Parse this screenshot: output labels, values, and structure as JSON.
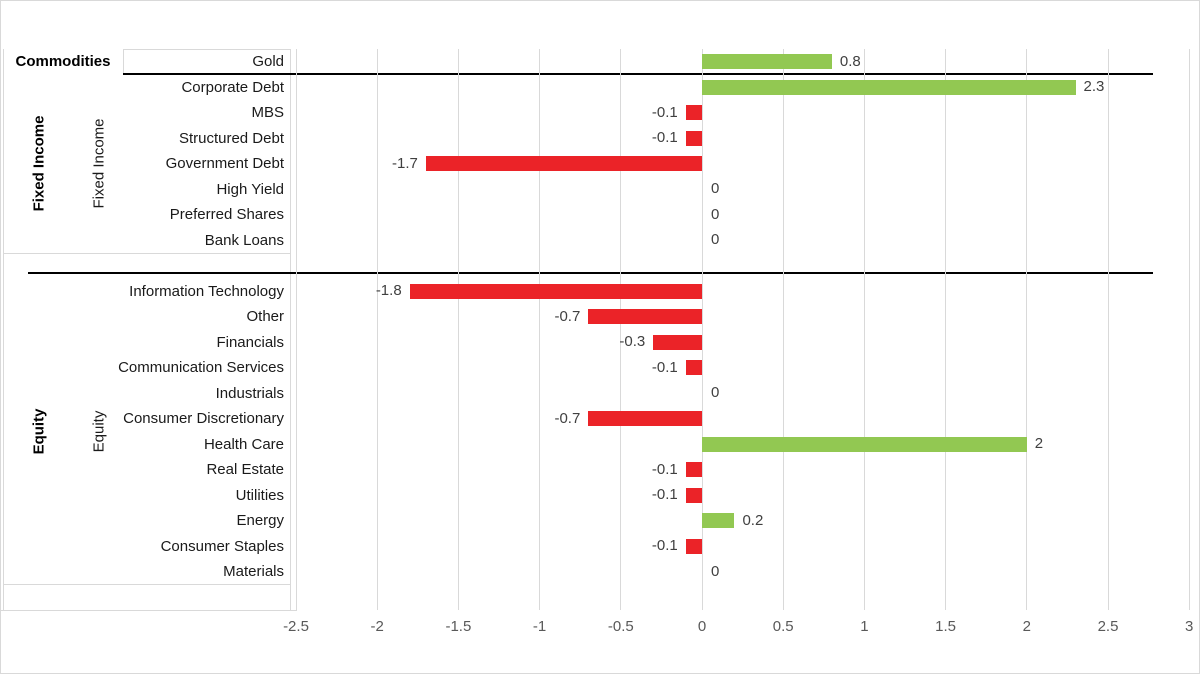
{
  "chart_data": {
    "type": "bar",
    "orientation": "horizontal",
    "title": "",
    "xlabel": "",
    "ylabel": "",
    "xlim": [
      -2.5,
      3
    ],
    "xticks": [
      "-2.5",
      "-2",
      "-1.5",
      "-1",
      "-0.5",
      "0",
      "0.5",
      "1",
      "1.5",
      "2",
      "2.5",
      "3"
    ],
    "grid": "vertical-on",
    "legend": "none",
    "colors": {
      "positive_bar": "#92C852",
      "negative_bar": "#EB2328",
      "gridline": "#D9D9D9",
      "group_separator": "#000000",
      "axis_text": "#595959",
      "category_text": "#1A1A1A",
      "value_text": "#404040",
      "border": "#D9D9D9"
    },
    "groups": [
      {
        "name": "Commodities",
        "items": [
          {
            "label": "Gold",
            "value": 0.8,
            "display": "0.8"
          }
        ]
      },
      {
        "name": "Fixed Income",
        "items": [
          {
            "label": "Corporate Debt",
            "value": 2.3,
            "display": "2.3"
          },
          {
            "label": "MBS",
            "value": -0.1,
            "display": "-0.1"
          },
          {
            "label": "Structured Debt",
            "value": -0.1,
            "display": "-0.1"
          },
          {
            "label": "Government Debt",
            "value": -1.7,
            "display": "-1.7"
          },
          {
            "label": "High Yield",
            "value": 0,
            "display": "0"
          },
          {
            "label": "Preferred Shares",
            "value": 0,
            "display": "0"
          },
          {
            "label": "Bank Loans",
            "value": 0,
            "display": "0"
          }
        ]
      },
      {
        "name": "Equity",
        "items": [
          {
            "label": "Information Technology",
            "value": -1.8,
            "display": "-1.8"
          },
          {
            "label": "Other",
            "value": -0.7,
            "display": "-0.7"
          },
          {
            "label": "Financials",
            "value": -0.3,
            "display": "-0.3"
          },
          {
            "label": "Communication Services",
            "value": -0.1,
            "display": "-0.1"
          },
          {
            "label": "Industrials",
            "value": 0,
            "display": "0"
          },
          {
            "label": "Consumer Discretionary",
            "value": -0.7,
            "display": "-0.7"
          },
          {
            "label": "Health Care",
            "value": 2,
            "display": "2"
          },
          {
            "label": "Real Estate",
            "value": -0.1,
            "display": "-0.1"
          },
          {
            "label": "Utilities",
            "value": -0.1,
            "display": "-0.1"
          },
          {
            "label": "Energy",
            "value": 0.2,
            "display": "0.2"
          },
          {
            "label": "Consumer Staples",
            "value": -0.1,
            "display": "-0.1"
          },
          {
            "label": "Materials",
            "value": 0,
            "display": "0"
          }
        ]
      }
    ]
  }
}
